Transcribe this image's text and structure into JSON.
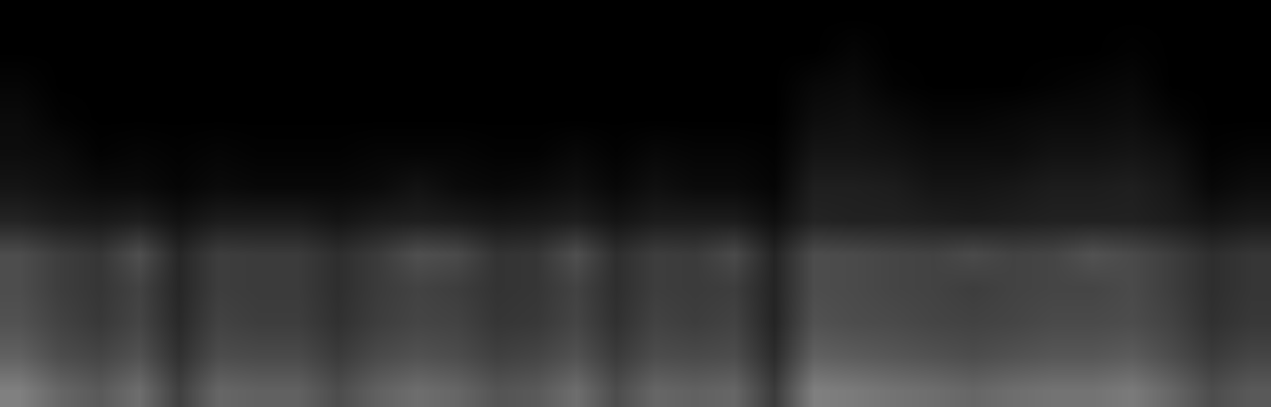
{
  "chart_data": {
    "type": "heatmap",
    "tick_labels": false,
    "color": "#ffffff",
    "zlim": [
      0,
      1
    ],
    "cells": [
      [
        0.5,
        0.4,
        0.35,
        0.43,
        0.25,
        0.4,
        0.38,
        0.38,
        0.3,
        0.38,
        0.43,
        0.4,
        0.33,
        0.35,
        0.43,
        0.3,
        0.4,
        0.38,
        0.4,
        0.23,
        0.5,
        0.48,
        0.45,
        0.43,
        0.4,
        0.43,
        0.45,
        0.45,
        0.48,
        0.4,
        0.3,
        0.35
      ],
      [
        0.38,
        0.3,
        0.27,
        0.32,
        0.19,
        0.3,
        0.29,
        0.29,
        0.23,
        0.29,
        0.32,
        0.3,
        0.25,
        0.27,
        0.32,
        0.23,
        0.3,
        0.29,
        0.3,
        0.17,
        0.38,
        0.36,
        0.34,
        0.32,
        0.3,
        0.32,
        0.34,
        0.34,
        0.36,
        0.3,
        0.23,
        0.27
      ],
      [
        0.32,
        0.26,
        0.22,
        0.27,
        0.16,
        0.26,
        0.24,
        0.24,
        0.19,
        0.24,
        0.27,
        0.26,
        0.21,
        0.22,
        0.27,
        0.19,
        0.26,
        0.24,
        0.26,
        0.14,
        0.32,
        0.3,
        0.29,
        0.27,
        0.26,
        0.27,
        0.29,
        0.29,
        0.3,
        0.26,
        0.19,
        0.22
      ],
      [
        0.3,
        0.24,
        0.21,
        0.26,
        0.15,
        0.24,
        0.23,
        0.23,
        0.18,
        0.23,
        0.26,
        0.24,
        0.2,
        0.21,
        0.26,
        0.18,
        0.24,
        0.23,
        0.24,
        0.14,
        0.3,
        0.29,
        0.27,
        0.26,
        0.24,
        0.26,
        0.27,
        0.27,
        0.29,
        0.24,
        0.18,
        0.21
      ],
      [
        0.3,
        0.24,
        0.21,
        0.31,
        0.15,
        0.24,
        0.23,
        0.23,
        0.18,
        0.23,
        0.31,
        0.29,
        0.2,
        0.21,
        0.31,
        0.18,
        0.24,
        0.23,
        0.29,
        0.14,
        0.3,
        0.29,
        0.27,
        0.26,
        0.29,
        0.26,
        0.27,
        0.32,
        0.29,
        0.24,
        0.18,
        0.21
      ],
      [
        0.14,
        0.11,
        0.1,
        0.12,
        0.07,
        0.11,
        0.11,
        0.11,
        0.08,
        0.11,
        0.12,
        0.11,
        0.09,
        0.1,
        0.12,
        0.08,
        0.11,
        0.11,
        0.11,
        0.06,
        0.14,
        0.13,
        0.13,
        0.12,
        0.11,
        0.12,
        0.13,
        0.13,
        0.13,
        0.11,
        0.08,
        0.1
      ],
      [
        0.08,
        0.06,
        0.04,
        0.04,
        0.02,
        0.04,
        0.03,
        0.03,
        0.03,
        0.04,
        0.07,
        0.04,
        0.03,
        0.04,
        0.06,
        0.03,
        0.06,
        0.04,
        0.04,
        0.02,
        0.12,
        0.12,
        0.11,
        0.08,
        0.08,
        0.09,
        0.11,
        0.11,
        0.12,
        0.09,
        0.03,
        0.05
      ],
      [
        0.05,
        0.04,
        0.01,
        0.02,
        0.01,
        0.02,
        0.01,
        0.01,
        0.01,
        0.02,
        0.02,
        0.02,
        0.01,
        0.01,
        0.03,
        0.01,
        0.03,
        0.02,
        0.02,
        0.01,
        0.08,
        0.08,
        0.07,
        0.05,
        0.05,
        0.05,
        0.07,
        0.07,
        0.08,
        0.06,
        0.01,
        0.02
      ],
      [
        0.04,
        0.01,
        0,
        0,
        0,
        0,
        0,
        0,
        0,
        0,
        0,
        0,
        0,
        0,
        0,
        0,
        0,
        0,
        0,
        0,
        0.05,
        0.06,
        0.04,
        0.02,
        0.02,
        0.03,
        0.04,
        0.04,
        0.05,
        0.02,
        0,
        0
      ],
      [
        0.02,
        0,
        0,
        0,
        0,
        0,
        0,
        0,
        0,
        0,
        0,
        0,
        0,
        0,
        0,
        0,
        0,
        0,
        0,
        0,
        0.03,
        0.04,
        0.01,
        0,
        0,
        0,
        0.01,
        0.02,
        0.03,
        0,
        0,
        0
      ],
      [
        0,
        0,
        0,
        0,
        0,
        0,
        0,
        0,
        0,
        0,
        0,
        0,
        0,
        0,
        0,
        0,
        0,
        0,
        0,
        0,
        0,
        0.02,
        0,
        0,
        0,
        0,
        0,
        0,
        0.01,
        0,
        0,
        0
      ],
      [
        0,
        0,
        0,
        0,
        0,
        0,
        0,
        0,
        0,
        0,
        0,
        0,
        0,
        0,
        0,
        0,
        0,
        0,
        0,
        0,
        0,
        0,
        0,
        0,
        0,
        0,
        0,
        0,
        0,
        0,
        0,
        0
      ]
    ]
  }
}
